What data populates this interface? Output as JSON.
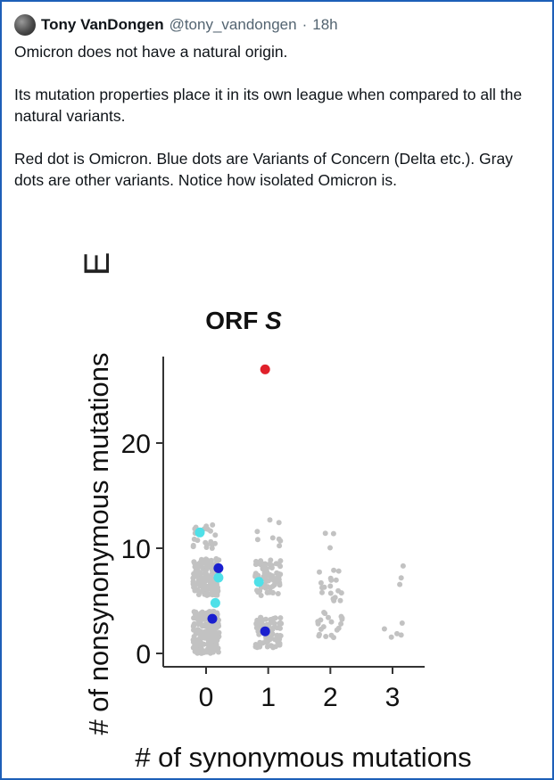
{
  "tweet": {
    "display_name": "Tony VanDongen",
    "handle": "@tony_vandongen",
    "separator": "·",
    "time": "18h",
    "avatar_icon": "profile-avatar",
    "paragraphs": [
      "Omicron does not have a natural origin.",
      "Its mutation properties place it in its own league when compared to all the natural variants.",
      "Red dot is Omicron. Blue dots are Variants of Concern (Delta etc.). Gray dots are other variants. Notice how isolated Omicron is."
    ]
  },
  "chart_data": {
    "type": "scatter",
    "panel_letter": "E",
    "title": "ORF S",
    "xlabel": "# of synonymous mutations",
    "ylabel": "# of nonsynonymous mutations",
    "xticks": [
      0,
      1,
      2,
      3
    ],
    "yticks": [
      0,
      10,
      20
    ],
    "xlim": [
      -0.35,
      3.45
    ],
    "ylim": [
      -1.5,
      28
    ],
    "grid": false,
    "legend": "none",
    "colors": {
      "omicron": "#e0202a",
      "voc": "#1a1fcf",
      "voc_light": "#4fe0e8",
      "other": "#c2c2c2"
    },
    "series": [
      {
        "color_key": "other",
        "clusters": [
          {
            "x": 0,
            "y": [
              0,
              4
            ],
            "count": 230
          },
          {
            "x": 0,
            "y": [
              5.5,
              9
            ],
            "count": 150
          },
          {
            "x": 0,
            "y": [
              10,
              12.5
            ],
            "count": 20
          },
          {
            "x": 1,
            "y": [
              0.5,
              3.5
            ],
            "count": 85
          },
          {
            "x": 1,
            "y": [
              5.5,
              9
            ],
            "count": 75
          },
          {
            "x": 1,
            "y": [
              10,
              13
            ],
            "count": 8
          },
          {
            "x": 2,
            "y": [
              1.5,
              4
            ],
            "count": 20
          },
          {
            "x": 2,
            "y": [
              5,
              8
            ],
            "count": 18
          },
          {
            "x": 2,
            "y": [
              9.5,
              12
            ],
            "count": 3
          },
          {
            "x": 3,
            "y": [
              1.5,
              3
            ],
            "count": 5
          },
          {
            "x": 3,
            "y": [
              6,
              9
            ],
            "count": 3
          }
        ]
      },
      {
        "color_key": "voc_light",
        "points": [
          {
            "x": -0.1,
            "y": 11.5
          },
          {
            "x": 0.2,
            "y": 7.2
          },
          {
            "x": 0.15,
            "y": 4.8
          },
          {
            "x": 0.85,
            "y": 6.8
          }
        ]
      },
      {
        "color_key": "voc",
        "points": [
          {
            "x": 0.2,
            "y": 8.1
          },
          {
            "x": 0.1,
            "y": 3.3
          },
          {
            "x": 0.95,
            "y": 2.1
          }
        ]
      },
      {
        "color_key": "omicron",
        "points": [
          {
            "x": 0.95,
            "y": 27
          }
        ]
      }
    ]
  }
}
